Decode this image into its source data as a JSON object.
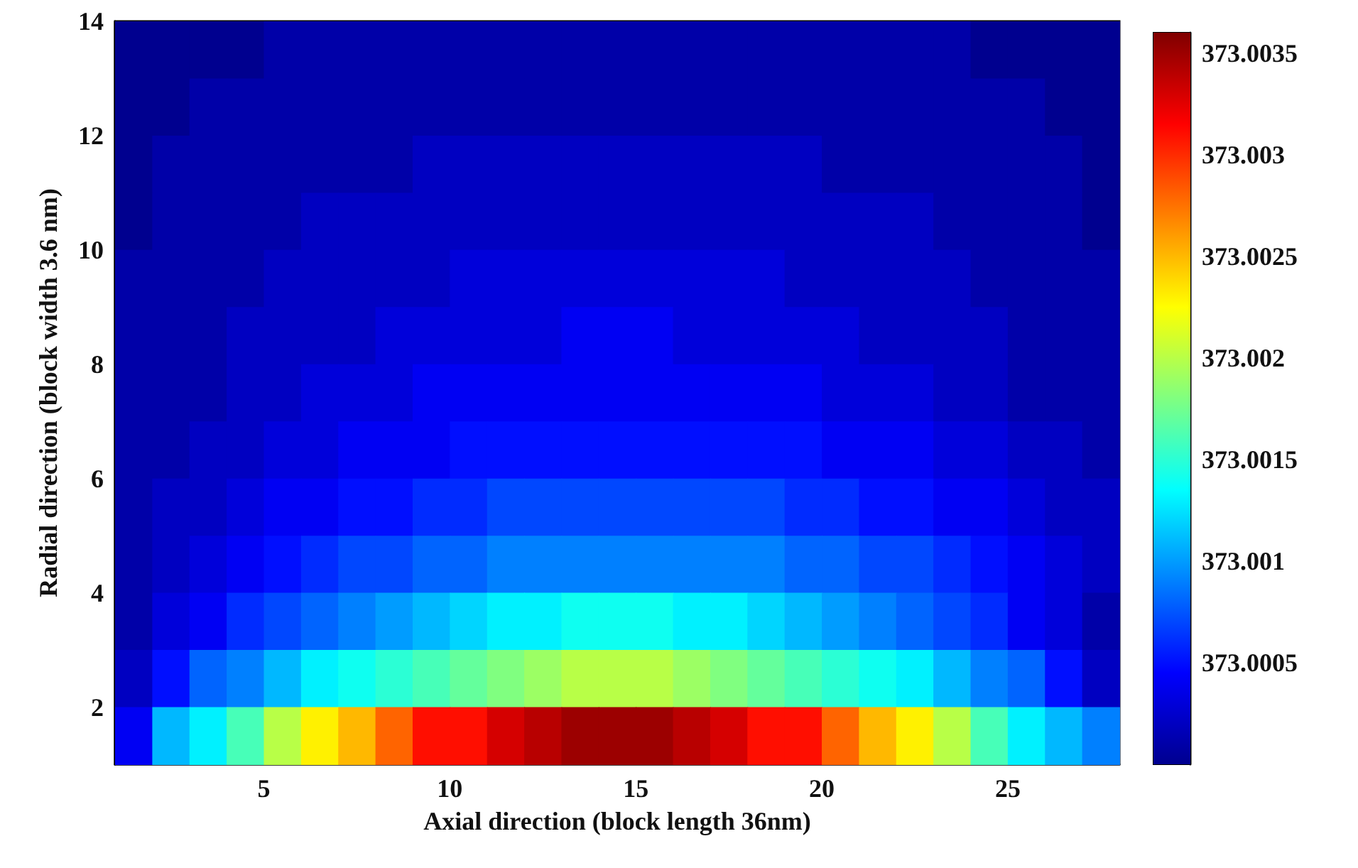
{
  "chart_data": {
    "type": "heatmap",
    "xlabel": "Axial direction (block length 36nm)",
    "ylabel": "Radial direction (block width 3.6 nm)",
    "xlim": [
      1,
      28
    ],
    "xticks": [
      5,
      10,
      15,
      20,
      25
    ],
    "ylim": [
      1,
      14
    ],
    "yticks": [
      2,
      4,
      6,
      8,
      10,
      12,
      14
    ],
    "clim": [
      373,
      373.0036
    ],
    "cticks": [
      373.0005,
      373.001,
      373.0015,
      373.002,
      373.0025,
      373.003,
      373.0035
    ],
    "cells": [
      [
        373,
        373,
        373,
        373,
        373.0001,
        373.0001,
        373.0001,
        373.0001,
        373.0001,
        373.0001,
        373.0001,
        373.0001,
        373.0001,
        373.0001,
        373.0001,
        373.0001,
        373.0001,
        373.0001,
        373.0001,
        373.0001,
        373.0001,
        373.0001,
        373.0001,
        373,
        373,
        373,
        373
      ],
      [
        373,
        373,
        373.0001,
        373.0001,
        373.0001,
        373.0001,
        373.0001,
        373.0001,
        373.0001,
        373.0001,
        373.0001,
        373.0001,
        373.0001,
        373.0001,
        373.0001,
        373.0001,
        373.0001,
        373.0001,
        373.0001,
        373.0001,
        373.0001,
        373.0001,
        373.0001,
        373.0001,
        373.0001,
        373,
        373
      ],
      [
        373,
        373.0001,
        373.0001,
        373.0001,
        373.0001,
        373.0001,
        373.0001,
        373.0001,
        373.0002,
        373.0002,
        373.0002,
        373.0002,
        373.0002,
        373.0002,
        373.0002,
        373.0002,
        373.0002,
        373.0002,
        373.0002,
        373.0001,
        373.0001,
        373.0001,
        373.0001,
        373.0001,
        373.0001,
        373.0001,
        373
      ],
      [
        373,
        373.0001,
        373.0001,
        373.0001,
        373.0001,
        373.0002,
        373.0002,
        373.0002,
        373.0002,
        373.0002,
        373.0002,
        373.0002,
        373.0002,
        373.0002,
        373.0002,
        373.0002,
        373.0002,
        373.0002,
        373.0002,
        373.0002,
        373.0002,
        373.0002,
        373.0001,
        373.0001,
        373.0001,
        373.0001,
        373
      ],
      [
        373.0001,
        373.0001,
        373.0001,
        373.0001,
        373.0002,
        373.0002,
        373.0002,
        373.0002,
        373.0002,
        373.0003,
        373.0003,
        373.0003,
        373.0003,
        373.0003,
        373.0003,
        373.0003,
        373.0003,
        373.0003,
        373.0002,
        373.0002,
        373.0002,
        373.0002,
        373.0002,
        373.0001,
        373.0001,
        373.0001,
        373.0001
      ],
      [
        373.0001,
        373.0001,
        373.0001,
        373.0002,
        373.0002,
        373.0002,
        373.0002,
        373.0003,
        373.0003,
        373.0003,
        373.0003,
        373.0003,
        373.0004,
        373.0004,
        373.0004,
        373.0003,
        373.0003,
        373.0003,
        373.0003,
        373.0003,
        373.0002,
        373.0002,
        373.0002,
        373.0002,
        373.0001,
        373.0001,
        373.0001
      ],
      [
        373.0001,
        373.0001,
        373.0001,
        373.0002,
        373.0002,
        373.0003,
        373.0003,
        373.0003,
        373.0004,
        373.0004,
        373.0004,
        373.0004,
        373.0004,
        373.0004,
        373.0004,
        373.0004,
        373.0004,
        373.0004,
        373.0004,
        373.0003,
        373.0003,
        373.0003,
        373.0002,
        373.0002,
        373.0001,
        373.0001,
        373.0001
      ],
      [
        373.0001,
        373.0001,
        373.0002,
        373.0002,
        373.0003,
        373.0003,
        373.0004,
        373.0004,
        373.0004,
        373.0005,
        373.0005,
        373.0005,
        373.0005,
        373.0005,
        373.0005,
        373.0005,
        373.0005,
        373.0005,
        373.0005,
        373.0004,
        373.0004,
        373.0004,
        373.0003,
        373.0003,
        373.0002,
        373.0002,
        373.0001
      ],
      [
        373.0001,
        373.0002,
        373.0002,
        373.0003,
        373.0004,
        373.0004,
        373.0005,
        373.0005,
        373.0006,
        373.0006,
        373.0007,
        373.0007,
        373.0007,
        373.0007,
        373.0007,
        373.0007,
        373.0007,
        373.0007,
        373.0006,
        373.0006,
        373.0005,
        373.0005,
        373.0004,
        373.0004,
        373.0003,
        373.0002,
        373.0002
      ],
      [
        373.0001,
        373.0002,
        373.0003,
        373.0004,
        373.0005,
        373.0006,
        373.0007,
        373.0007,
        373.0008,
        373.0008,
        373.0009,
        373.0009,
        373.0009,
        373.0009,
        373.0009,
        373.0009,
        373.0009,
        373.0009,
        373.0008,
        373.0008,
        373.0007,
        373.0007,
        373.0006,
        373.0005,
        373.0004,
        373.0003,
        373.0002
      ],
      [
        373.0001,
        373.0003,
        373.0004,
        373.0006,
        373.0007,
        373.0008,
        373.0009,
        373.001,
        373.0011,
        373.0012,
        373.0013,
        373.0013,
        373.0014,
        373.0014,
        373.0014,
        373.0013,
        373.0013,
        373.0012,
        373.0011,
        373.001,
        373.0009,
        373.0008,
        373.0007,
        373.0006,
        373.0004,
        373.0003,
        373.0001
      ],
      [
        373.0002,
        373.0005,
        373.0008,
        373.0009,
        373.0011,
        373.0013,
        373.0014,
        373.0015,
        373.0016,
        373.0017,
        373.0018,
        373.0019,
        373.002,
        373.002,
        373.002,
        373.0019,
        373.0018,
        373.0017,
        373.0016,
        373.0015,
        373.0014,
        373.0013,
        373.0011,
        373.0009,
        373.0008,
        373.0005,
        373.0002
      ],
      [
        373.0004,
        373.0011,
        373.0013,
        373.0016,
        373.002,
        373.0023,
        373.0025,
        373.0028,
        373.0031,
        373.0031,
        373.0033,
        373.0034,
        373.0035,
        373.0035,
        373.0035,
        373.0034,
        373.0033,
        373.0031,
        373.0031,
        373.0028,
        373.0025,
        373.0023,
        373.002,
        373.0016,
        373.0013,
        373.0011,
        373.0009
      ]
    ]
  }
}
